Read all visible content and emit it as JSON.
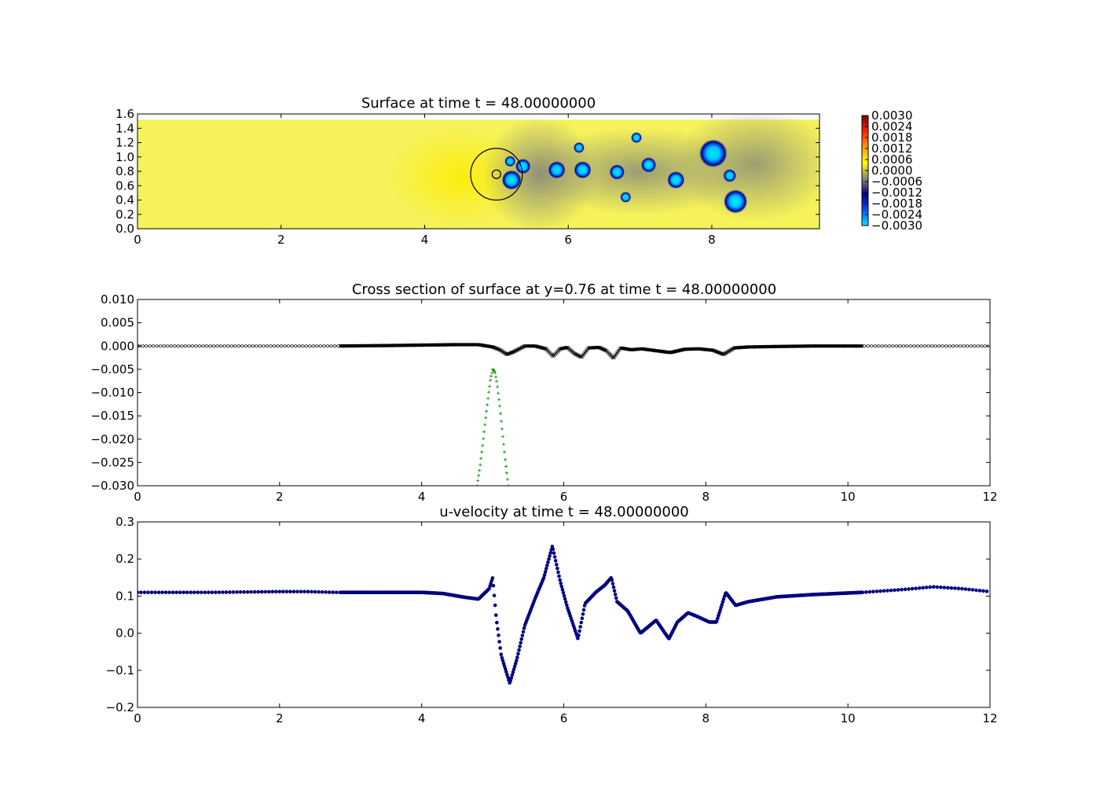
{
  "figure": {
    "panels": [
      "surface_map",
      "cross_section",
      "u_velocity"
    ]
  },
  "chart_data": [
    {
      "id": "surface_map",
      "type": "heatmap",
      "title": "Surface at time t =    48.00000000",
      "xlabel": "",
      "ylabel": "",
      "xlim": [
        0,
        9.5
      ],
      "ylim": [
        0,
        1.6
      ],
      "xticks": [
        0,
        2,
        4,
        6,
        8
      ],
      "yticks": [
        0.0,
        0.2,
        0.4,
        0.6,
        0.8,
        1.0,
        1.2,
        1.4,
        1.6
      ],
      "domain_top": 1.52,
      "colorbar": {
        "min": -0.003,
        "max": 0.003,
        "ticks": [
          0.003,
          0.0024,
          0.0018,
          0.0012,
          0.0006,
          0.0,
          -0.0006,
          -0.0012,
          -0.0018,
          -0.0024,
          -0.003
        ],
        "tick_labels": [
          "0.0030",
          "0.0024",
          "0.0018",
          "0.0012",
          "0.0006",
          "0.0000",
          "−0.0006",
          "−0.0012",
          "−0.0018",
          "−0.0024",
          "−0.0030"
        ],
        "colormap": [
          "#00e5ff",
          "#0050ff",
          "#00007a",
          "#888a7a",
          "#ffff00",
          "#ff9900",
          "#ff2200",
          "#800000"
        ]
      },
      "base_color": "#f5f25a",
      "background_features": [
        {
          "x": 4.5,
          "y": 0.72,
          "value": 0.0006,
          "rx": 1.0,
          "ry": 0.7
        },
        {
          "x": 5.6,
          "y": 0.76,
          "value": -0.0005,
          "rx": 0.8,
          "ry": 0.8
        },
        {
          "x": 7.0,
          "y": 0.8,
          "value": -0.0004,
          "rx": 1.6,
          "ry": 0.6
        },
        {
          "x": 8.6,
          "y": 0.9,
          "value": -0.0004,
          "rx": 1.1,
          "ry": 0.8
        }
      ],
      "vortices": [
        {
          "x": 5.19,
          "y": 0.94,
          "r": 0.05
        },
        {
          "x": 5.21,
          "y": 0.68,
          "r": 0.09
        },
        {
          "x": 5.37,
          "y": 0.87,
          "r": 0.07
        },
        {
          "x": 5.84,
          "y": 0.82,
          "r": 0.08
        },
        {
          "x": 6.2,
          "y": 0.82,
          "r": 0.08
        },
        {
          "x": 6.15,
          "y": 1.13,
          "r": 0.05
        },
        {
          "x": 6.68,
          "y": 0.79,
          "r": 0.07
        },
        {
          "x": 6.8,
          "y": 0.44,
          "r": 0.05
        },
        {
          "x": 6.95,
          "y": 1.27,
          "r": 0.05
        },
        {
          "x": 7.12,
          "y": 0.89,
          "r": 0.07
        },
        {
          "x": 7.5,
          "y": 0.68,
          "r": 0.08
        },
        {
          "x": 8.02,
          "y": 1.05,
          "r": 0.13
        },
        {
          "x": 8.25,
          "y": 0.74,
          "r": 0.06
        },
        {
          "x": 8.33,
          "y": 0.38,
          "r": 0.11
        }
      ],
      "cylinder": {
        "x": 5.0,
        "y": 0.76,
        "r_outer": 0.36,
        "r_inner": 0.06
      }
    },
    {
      "id": "cross_section",
      "type": "scatter",
      "title": "Cross section of surface at y=0.76 at time t =    48.00000000",
      "xlabel": "",
      "ylabel": "",
      "xlim": [
        0,
        12
      ],
      "ylim": [
        -0.03,
        0.01
      ],
      "xticks": [
        0,
        2,
        4,
        6,
        8,
        10,
        12
      ],
      "yticks": [
        0.01,
        0.005,
        0.0,
        -0.005,
        -0.01,
        -0.015,
        -0.02,
        -0.025,
        -0.03
      ],
      "ytick_labels": [
        "0.010",
        "0.005",
        "0.000",
        "−0.005",
        "−0.010",
        "−0.015",
        "−0.020",
        "−0.025",
        "−0.030"
      ],
      "series": [
        {
          "marker": "x",
          "color": "#000000",
          "fine_range": [
            2.8,
            10.2
          ],
          "x": [
            0.0,
            2.8,
            3.5,
            4.0,
            4.5,
            4.8,
            5.0,
            5.1,
            5.2,
            5.3,
            5.45,
            5.6,
            5.75,
            5.85,
            5.95,
            6.05,
            6.15,
            6.25,
            6.35,
            6.5,
            6.6,
            6.7,
            6.8,
            6.95,
            7.1,
            7.3,
            7.5,
            7.7,
            7.9,
            8.1,
            8.25,
            8.4,
            8.6,
            9.0,
            9.5,
            10.2,
            12.0
          ],
          "y": [
            0.0,
            0.0,
            0.0001,
            0.0002,
            0.0003,
            0.0003,
            -0.0002,
            -0.0008,
            -0.0018,
            -0.0012,
            0.0,
            0.0,
            -0.0006,
            -0.0022,
            -0.0006,
            -0.0003,
            -0.0016,
            -0.0024,
            -0.0004,
            -0.0003,
            -0.001,
            -0.0026,
            -0.0004,
            -0.0008,
            -0.0006,
            -0.001,
            -0.0014,
            -0.0007,
            -0.0006,
            -0.0009,
            -0.0018,
            -0.0004,
            -0.0002,
            -0.0001,
            0.0,
            0.0,
            0.0
          ]
        },
        {
          "marker": "+",
          "color": "#008000",
          "x": [
            4.78,
            4.82,
            4.86,
            4.9,
            4.94,
            4.97,
            5.0,
            5.03,
            5.06,
            5.1,
            5.14,
            5.18,
            5.22
          ],
          "y": [
            -0.03,
            -0.026,
            -0.021,
            -0.0155,
            -0.0105,
            -0.007,
            -0.005,
            -0.0055,
            -0.008,
            -0.013,
            -0.019,
            -0.025,
            -0.03
          ]
        }
      ]
    },
    {
      "id": "u_velocity",
      "type": "scatter",
      "title": "u-velocity at time t =    48.00000000",
      "xlabel": "",
      "ylabel": "",
      "xlim": [
        0,
        12
      ],
      "ylim": [
        -0.2,
        0.3
      ],
      "xticks": [
        0,
        2,
        4,
        6,
        8,
        10,
        12
      ],
      "yticks": [
        0.3,
        0.2,
        0.1,
        0.0,
        -0.1,
        -0.2
      ],
      "ytick_labels": [
        "0.3",
        "0.2",
        "0.1",
        "0.0",
        "−0.1",
        "−0.2"
      ],
      "series": [
        {
          "marker": "o",
          "color": "#000080",
          "fine_range": [
            2.8,
            10.2
          ],
          "x": [
            0.0,
            1.0,
            2.0,
            2.4,
            2.8,
            3.5,
            4.0,
            4.3,
            4.6,
            4.8,
            4.95,
            5.0,
            5.05,
            5.12,
            5.24,
            5.34,
            5.45,
            5.6,
            5.72,
            5.84,
            5.95,
            6.05,
            6.2,
            6.3,
            6.45,
            6.58,
            6.67,
            6.75,
            6.9,
            7.08,
            7.3,
            7.48,
            7.6,
            7.75,
            7.88,
            8.05,
            8.15,
            8.28,
            8.42,
            8.6,
            9.0,
            9.5,
            10.2,
            10.8,
            11.2,
            11.6,
            12.0
          ],
          "y": [
            0.11,
            0.11,
            0.112,
            0.112,
            0.11,
            0.11,
            0.11,
            0.107,
            0.097,
            0.092,
            0.12,
            0.15,
            0.04,
            -0.06,
            -0.135,
            -0.07,
            0.02,
            0.095,
            0.15,
            0.235,
            0.14,
            0.07,
            -0.015,
            0.08,
            0.11,
            0.13,
            0.15,
            0.085,
            0.06,
            0.0,
            0.035,
            -0.015,
            0.03,
            0.055,
            0.045,
            0.03,
            0.03,
            0.11,
            0.075,
            0.085,
            0.098,
            0.104,
            0.11,
            0.118,
            0.125,
            0.12,
            0.112
          ]
        }
      ]
    }
  ]
}
